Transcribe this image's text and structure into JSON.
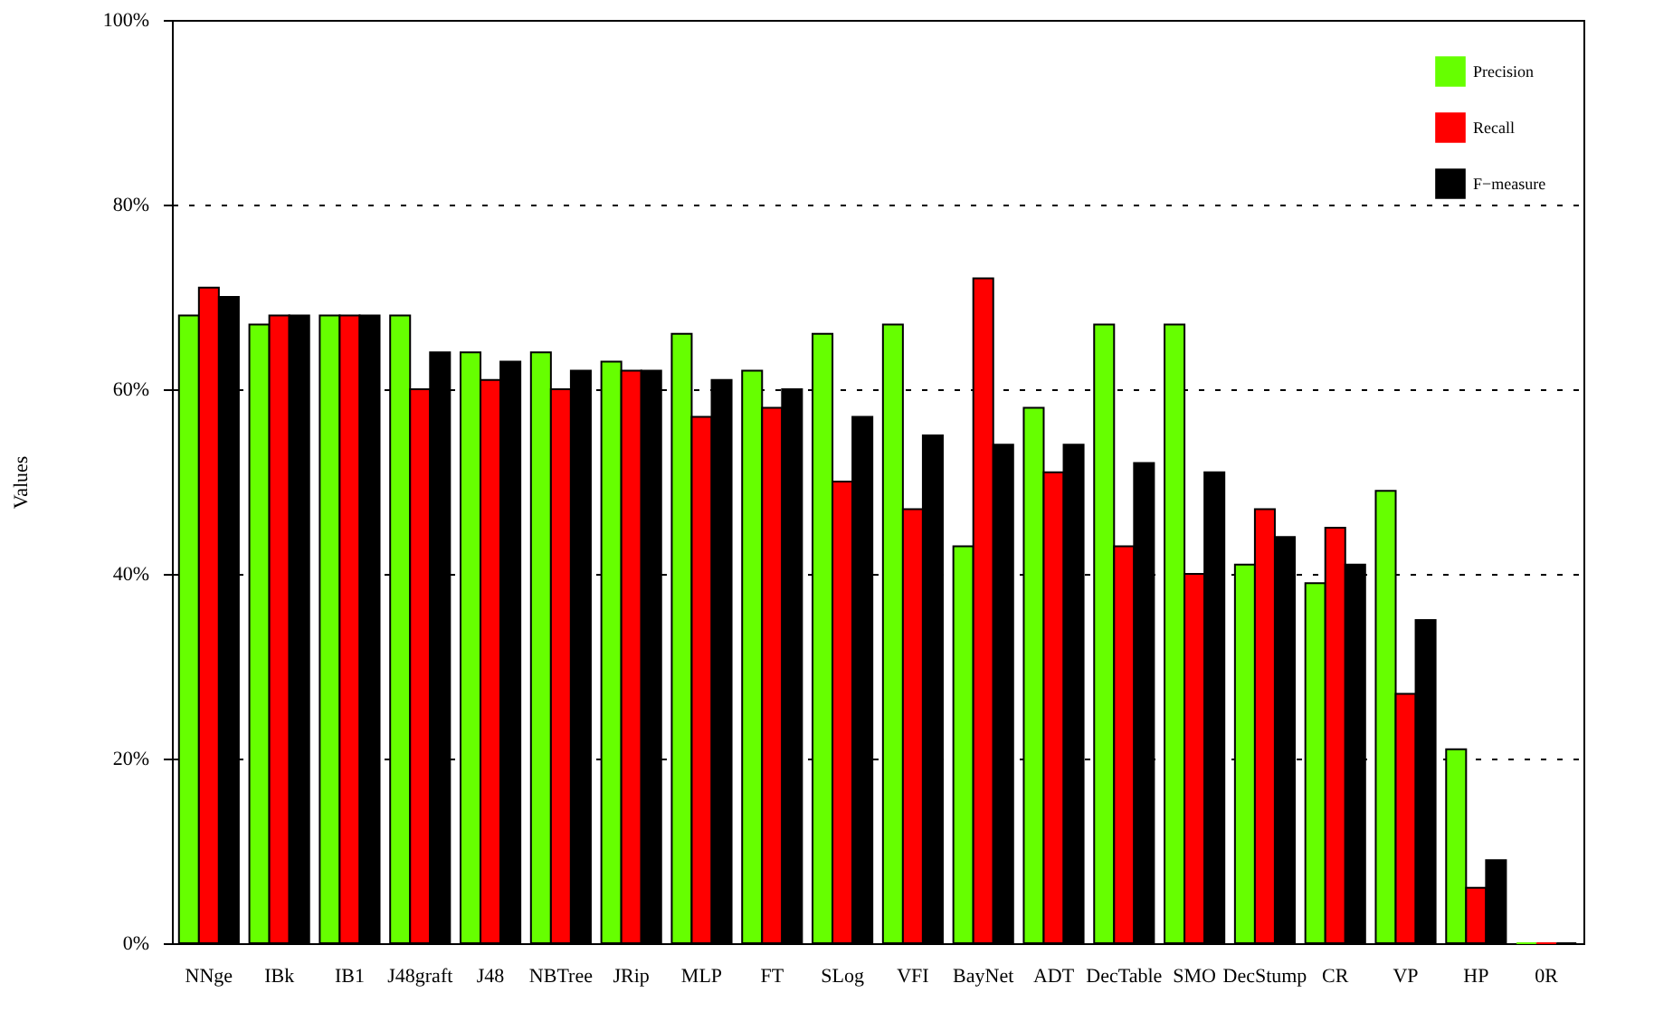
{
  "chart_data": {
    "type": "bar",
    "ylabel": "Values",
    "categories": [
      "NNge",
      "IBk",
      "IB1",
      "J48graft",
      "J48",
      "NBTree",
      "JRip",
      "MLP",
      "FT",
      "SLog",
      "VFI",
      "BayNet",
      "ADT",
      "DecTable",
      "SMO",
      "DecStump",
      "CR",
      "VP",
      "HP",
      "0R"
    ],
    "series": [
      {
        "name": "Precision",
        "color": "#66ff00",
        "values": [
          68,
          67,
          68,
          68,
          64,
          64,
          63,
          66,
          62,
          66,
          67,
          43,
          58,
          67,
          67,
          41,
          39,
          49,
          21,
          0
        ]
      },
      {
        "name": "Recall",
        "color": "#ff0000",
        "values": [
          71,
          68,
          68,
          60,
          61,
          60,
          62,
          57,
          58,
          50,
          47,
          72,
          51,
          43,
          40,
          47,
          45,
          27,
          6,
          0
        ]
      },
      {
        "name": "F−measure",
        "color": "#000000",
        "values": [
          70,
          68,
          68,
          64,
          63,
          62,
          62,
          61,
          60,
          57,
          55,
          54,
          54,
          52,
          51,
          44,
          41,
          35,
          9,
          0
        ]
      }
    ],
    "ylim": [
      0,
      100
    ],
    "yticks": [
      {
        "value": 0,
        "label": "0%"
      },
      {
        "value": 20,
        "label": "20%"
      },
      {
        "value": 40,
        "label": "40%"
      },
      {
        "value": 60,
        "label": "60%"
      },
      {
        "value": 80,
        "label": "80%"
      },
      {
        "value": 100,
        "label": "100%"
      }
    ],
    "grid": "y",
    "legend": "top right"
  }
}
